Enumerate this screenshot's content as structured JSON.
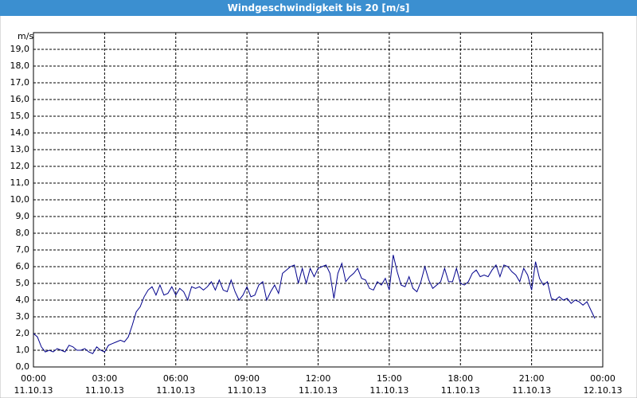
{
  "chart_data": {
    "type": "line",
    "title": "Windgeschwindigkeit bis 20 [m/s]",
    "y_label": "m/s",
    "x_unit": "minutes",
    "xlim": [
      0,
      1440
    ],
    "xticks": [
      {
        "value": 0,
        "label": "00:00",
        "date": "11.10.13"
      },
      {
        "value": 180,
        "label": "03:00",
        "date": "11.10.13"
      },
      {
        "value": 360,
        "label": "06:00",
        "date": "11.10.13"
      },
      {
        "value": 540,
        "label": "09:00",
        "date": "11.10.13"
      },
      {
        "value": 720,
        "label": "12:00",
        "date": "11.10.13"
      },
      {
        "value": 900,
        "label": "15:00",
        "date": "11.10.13"
      },
      {
        "value": 1080,
        "label": "18:00",
        "date": "11.10.13"
      },
      {
        "value": 1260,
        "label": "21:00",
        "date": "11.10.13"
      },
      {
        "value": 1440,
        "label": "00:00",
        "date": "12.10.13"
      }
    ],
    "ylim": [
      0,
      20
    ],
    "yticks": [
      {
        "value": 0,
        "label": "0,0"
      },
      {
        "value": 1,
        "label": "1,0"
      },
      {
        "value": 2,
        "label": "2,0"
      },
      {
        "value": 3,
        "label": "3,0"
      },
      {
        "value": 4,
        "label": "4,0"
      },
      {
        "value": 5,
        "label": "5,0"
      },
      {
        "value": 6,
        "label": "6,0"
      },
      {
        "value": 7,
        "label": "7,0"
      },
      {
        "value": 8,
        "label": "8,0"
      },
      {
        "value": 9,
        "label": "9,0"
      },
      {
        "value": 10,
        "label": "10,0"
      },
      {
        "value": 11,
        "label": "11,0"
      },
      {
        "value": 12,
        "label": "12,0"
      },
      {
        "value": 13,
        "label": "13,0"
      },
      {
        "value": 14,
        "label": "14,0"
      },
      {
        "value": 15,
        "label": "15,0"
      },
      {
        "value": 16,
        "label": "16,0"
      },
      {
        "value": 17,
        "label": "17,0"
      },
      {
        "value": 18,
        "label": "18,0"
      },
      {
        "value": 19,
        "label": "19,0"
      }
    ],
    "grid": true,
    "color": "#00008b",
    "x": [
      0,
      10,
      20,
      30,
      40,
      50,
      60,
      70,
      80,
      90,
      100,
      110,
      120,
      130,
      140,
      150,
      160,
      170,
      180,
      190,
      200,
      210,
      220,
      230,
      240,
      250,
      260,
      270,
      280,
      290,
      300,
      310,
      320,
      330,
      340,
      350,
      360,
      370,
      380,
      390,
      400,
      410,
      420,
      430,
      440,
      450,
      460,
      470,
      480,
      490,
      500,
      510,
      520,
      530,
      540,
      550,
      560,
      570,
      580,
      590,
      600,
      610,
      620,
      630,
      640,
      650,
      660,
      670,
      680,
      690,
      700,
      710,
      720,
      730,
      740,
      750,
      760,
      770,
      780,
      790,
      800,
      810,
      820,
      830,
      840,
      850,
      860,
      870,
      880,
      890,
      900,
      910,
      920,
      930,
      940,
      950,
      960,
      970,
      980,
      990,
      1000,
      1010,
      1020,
      1030,
      1040,
      1050,
      1060,
      1070,
      1080,
      1090,
      1100,
      1110,
      1120,
      1130,
      1140,
      1150,
      1160,
      1170,
      1180,
      1190,
      1200,
      1210,
      1220,
      1230,
      1240,
      1250,
      1260,
      1270,
      1280,
      1290,
      1300,
      1310,
      1320,
      1330,
      1340,
      1350,
      1360,
      1370,
      1380,
      1390,
      1400,
      1410,
      1420
    ],
    "values": [
      2.0,
      1.8,
      1.2,
      0.9,
      1.0,
      0.9,
      1.1,
      1.0,
      0.9,
      1.3,
      1.2,
      1.0,
      1.0,
      1.1,
      0.9,
      0.8,
      1.2,
      1.0,
      0.9,
      1.3,
      1.4,
      1.5,
      1.6,
      1.5,
      1.8,
      2.5,
      3.3,
      3.6,
      4.2,
      4.6,
      4.8,
      4.3,
      4.9,
      4.3,
      4.4,
      4.8,
      4.3,
      4.7,
      4.5,
      4.0,
      4.8,
      4.7,
      4.8,
      4.6,
      4.8,
      5.1,
      4.6,
      5.2,
      4.6,
      4.5,
      5.2,
      4.5,
      4.0,
      4.3,
      4.8,
      4.2,
      4.3,
      4.9,
      5.1,
      4.0,
      4.5,
      4.9,
      4.4,
      5.6,
      5.8,
      6.0,
      6.1,
      5.0,
      5.9,
      5.0,
      5.9,
      5.4,
      5.9,
      6.0,
      6.1,
      5.6,
      4.1,
      5.6,
      6.2,
      5.1,
      5.4,
      5.6,
      5.9,
      5.3,
      5.2,
      4.7,
      4.6,
      5.1,
      4.9,
      5.3,
      4.6,
      6.7,
      5.7,
      4.9,
      4.8,
      5.4,
      4.7,
      4.5,
      5.1,
      6.0,
      5.2,
      4.7,
      4.9,
      5.1,
      5.9,
      5.1,
      5.1,
      5.9,
      5.0,
      4.9,
      5.1,
      5.6,
      5.8,
      5.4,
      5.5,
      5.4,
      5.8,
      6.1,
      5.4,
      6.1,
      6.0,
      5.7,
      5.5,
      5.1,
      5.9,
      5.5,
      4.6,
      6.3,
      5.3,
      4.9,
      5.1,
      4.1,
      4.0,
      4.2,
      4.0,
      4.1,
      3.8,
      4.0,
      3.9,
      3.7,
      3.9,
      3.4,
      2.9
    ]
  }
}
